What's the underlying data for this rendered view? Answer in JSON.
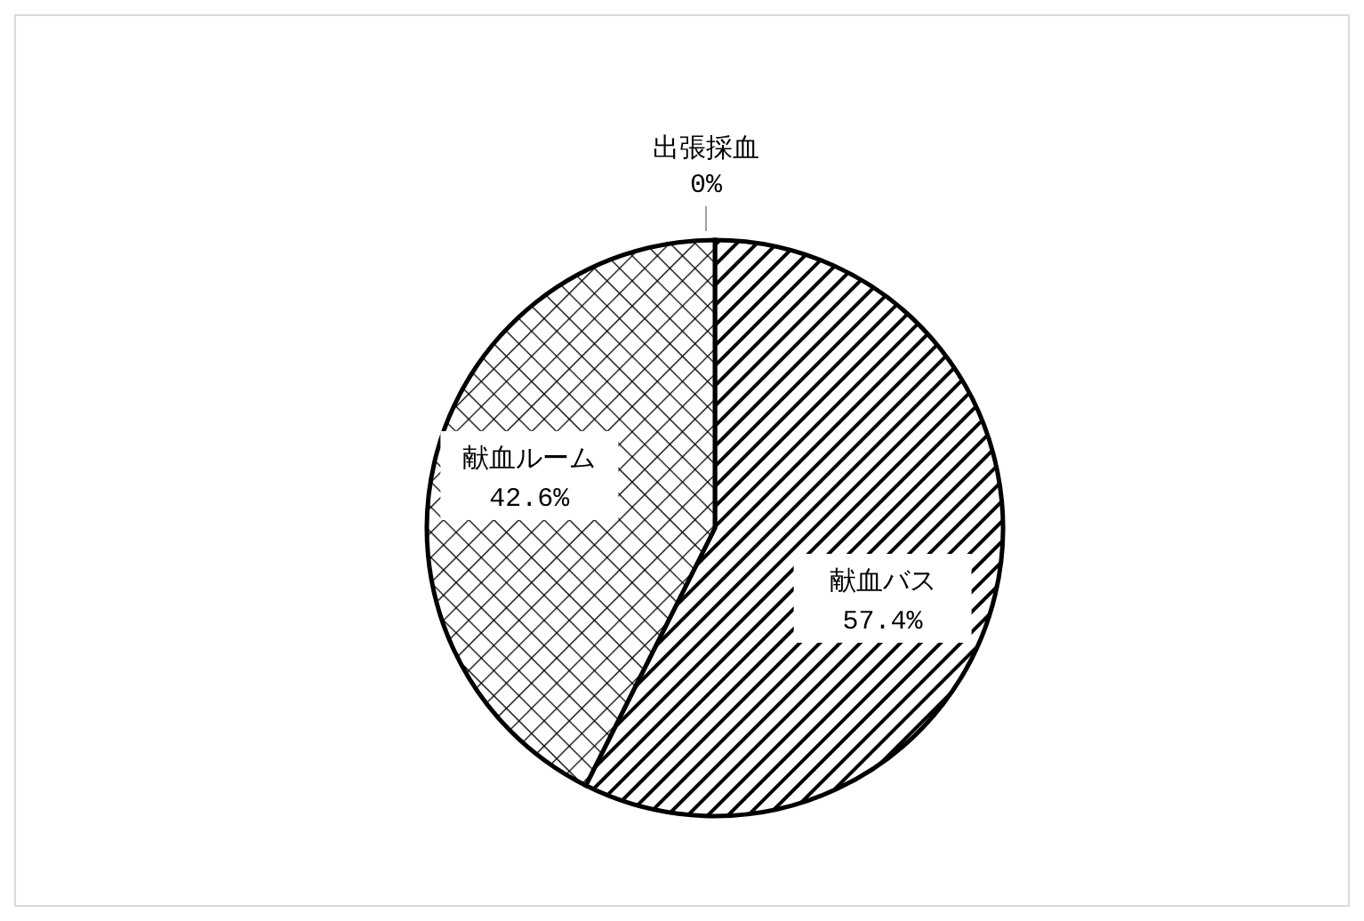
{
  "chart_data": {
    "type": "pie",
    "categories": [
      "献血バス",
      "献血ルーム",
      "出張採血"
    ],
    "values": [
      57.4,
      42.6,
      0
    ],
    "value_labels": [
      "57.4%",
      "42.6%",
      "0%"
    ],
    "colors": [
      "#000000",
      "#000000",
      "#000000"
    ],
    "legend": false
  }
}
